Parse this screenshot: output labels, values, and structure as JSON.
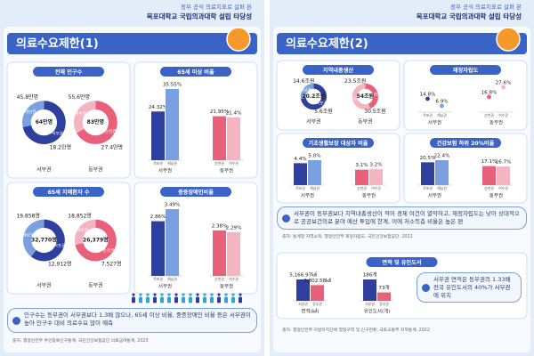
{
  "pages": [
    {
      "header": {
        "line1": "정부 공식 의료지표로 살펴 본",
        "line2": "목포대학교 국립의과대학 설립 타당성"
      },
      "title": "의료수요제한(1)",
      "charts": [
        {
          "type": "donut",
          "title": "전체 인구수",
          "groups": [
            {
              "name": "서부권",
              "total_label": "64만명",
              "segments": [
                {
                  "name": "목포권",
                  "value": 45.8,
                  "label": "45.8만명",
                  "color": "#2f3f9e"
                },
                {
                  "name": "해남권",
                  "value": 18.2,
                  "label": "18.2만명",
                  "color": "#7aa0e0"
                }
              ]
            },
            {
              "name": "동부권",
              "total_label": "83만명",
              "segments": [
                {
                  "name": "순천권",
                  "value": 55.6,
                  "label": "55.6만명",
                  "color": "#e8607a"
                },
                {
                  "name": "여수권",
                  "value": 27.4,
                  "label": "27.4만명",
                  "color": "#f4b4c2"
                }
              ]
            }
          ]
        },
        {
          "type": "bar",
          "title": "65세 이상 비율",
          "groups": [
            {
              "name": "서부권",
              "bars": [
                {
                  "name": "목포권",
                  "value": 24.32,
                  "value_label": "24.32%",
                  "color": "#2f3f9e"
                },
                {
                  "name": "해남권",
                  "value": 35.55,
                  "value_label": "35.55%",
                  "color": "#7aa0e0"
                }
              ]
            },
            {
              "name": "동부권",
              "bars": [
                {
                  "name": "순천권",
                  "value": 21.95,
                  "value_label": "21.95%",
                  "color": "#e8607a"
                },
                {
                  "name": "여수권",
                  "value": 21.4,
                  "value_label": "21.4%",
                  "color": "#f4b4c2"
                }
              ]
            }
          ]
        },
        {
          "type": "donut",
          "title": "65세 치매환자 수",
          "groups": [
            {
              "name": "서부권",
              "total_label": "32,770명",
              "segments": [
                {
                  "name": "목포권",
                  "value": 19858,
                  "label": "19,858명",
                  "color": "#2f3f9e"
                },
                {
                  "name": "해남권",
                  "value": 12912,
                  "label": "12,912명",
                  "color": "#7aa0e0"
                }
              ]
            },
            {
              "name": "동부권",
              "total_label": "26,379명",
              "segments": [
                {
                  "name": "순천권",
                  "value": 18852,
                  "label": "18,852명",
                  "color": "#e8607a"
                },
                {
                  "name": "여수권",
                  "value": 7527,
                  "label": "7,527명",
                  "color": "#f4b4c2"
                }
              ]
            }
          ]
        },
        {
          "type": "bar",
          "title": "중증장애인비율",
          "groups": [
            {
              "name": "서부권",
              "bars": [
                {
                  "name": "목포권",
                  "value": 2.86,
                  "value_label": "2.86%",
                  "color": "#2f3f9e"
                },
                {
                  "name": "해남권",
                  "value": 3.49,
                  "value_label": "3.49%",
                  "color": "#7aa0e0"
                }
              ]
            },
            {
              "name": "동부권",
              "bars": [
                {
                  "name": "순천권",
                  "value": 2.38,
                  "value_label": "2.38%",
                  "color": "#e8607a"
                },
                {
                  "name": "여수권",
                  "value": 2.29,
                  "value_label": "2.29%",
                  "color": "#f4b4c2"
                }
              ]
            }
          ]
        }
      ],
      "notes": [
        "인구수는 동부권이 서부권보다 1.3배 많으나, 65세 이상 비율, 중증장애인 비율 등은 서부권이 높아 인구수 대비 의료수요 많이 예측"
      ],
      "sources": [
        "출처: 행정안전부 주민등록인구통계, 국민건강보험공단 의료급여통계, 2023"
      ]
    },
    {
      "header": {
        "line1": "정부 공식 의료지표로 살펴 본",
        "line2": "목포대학교 국립의과대학 설립 타당성"
      },
      "title": "의료수요제한(2)",
      "charts": [
        {
          "type": "donut",
          "title": "지역내총생산",
          "groups": [
            {
              "name": "서부권",
              "total_label": "20.2조원",
              "segments": [
                {
                  "name": "목포권",
                  "value": 14.6,
                  "label": "14.6조원",
                  "color": "#2f3f9e"
                },
                {
                  "name": "해남권",
                  "value": 5.6,
                  "label": "5.6조원",
                  "color": "#7aa0e0"
                }
              ]
            },
            {
              "name": "동부권",
              "total_label": "54조원",
              "segments": [
                {
                  "name": "순천권",
                  "value": 23.5,
                  "label": "23.5조원",
                  "color": "#e8607a"
                },
                {
                  "name": "여수권",
                  "value": 30.5,
                  "label": "30.5조원",
                  "color": "#f4b4c2"
                }
              ]
            }
          ]
        },
        {
          "type": "dot",
          "title": "재정자립도",
          "groups": [
            {
              "name": "서부권",
              "bars": [
                {
                  "name": "목포권",
                  "value": 14.8,
                  "value_label": "14.8%",
                  "color": "#2f3f9e"
                },
                {
                  "name": "해남권",
                  "value": 6.9,
                  "value_label": "6.9%",
                  "color": "#7aa0e0"
                }
              ]
            },
            {
              "name": "동부권",
              "bars": [
                {
                  "name": "순천권",
                  "value": 16.8,
                  "value_label": "16.8%",
                  "color": "#e8607a"
                },
                {
                  "name": "여수권",
                  "value": 27.6,
                  "value_label": "27.6%",
                  "color": "#f4b4c2"
                }
              ]
            }
          ]
        },
        {
          "type": "bar",
          "title": "기초생활보장 대상자 비율",
          "groups": [
            {
              "name": "서부권",
              "bars": [
                {
                  "name": "목포권",
                  "value": 4.4,
                  "value_label": "4.4%",
                  "color": "#2f3f9e"
                },
                {
                  "name": "해남권",
                  "value": 5.0,
                  "value_label": "5.0%",
                  "color": "#7aa0e0"
                }
              ]
            },
            {
              "name": "동부권",
              "bars": [
                {
                  "name": "순천권",
                  "value": 3.1,
                  "value_label": "3.1%",
                  "color": "#e8607a"
                },
                {
                  "name": "여수권",
                  "value": 3.2,
                  "value_label": "3.2%",
                  "color": "#f4b4c2"
                }
              ]
            }
          ]
        },
        {
          "type": "bar",
          "title": "건강보험 하위 20%비율",
          "groups": [
            {
              "name": "서부권",
              "bars": [
                {
                  "name": "목포권",
                  "value": 20.5,
                  "value_label": "20.5%",
                  "color": "#2f3f9e"
                },
                {
                  "name": "해남권",
                  "value": 22.4,
                  "value_label": "22.4%",
                  "color": "#7aa0e0"
                }
              ]
            },
            {
              "name": "동부권",
              "bars": [
                {
                  "name": "순천권",
                  "value": 17.1,
                  "value_label": "17.1%",
                  "color": "#e8607a"
                },
                {
                  "name": "여수권",
                  "value": 16.7,
                  "value_label": "16.7%",
                  "color": "#f4b4c2"
                }
              ]
            }
          ]
        },
        {
          "type": "paired_bar",
          "title": "면적 및 유인도서",
          "groups": [
            {
              "name": "면적(㎢)",
              "bars": [
                {
                  "name": "서부권",
                  "value": 5166.97,
                  "value_label": "5,166.97㎢",
                  "color": "#2f3f9e"
                },
                {
                  "name": "동부권",
                  "value": 3802.58,
                  "value_label": "3,802.58㎢",
                  "color": "#e8607a"
                }
              ]
            },
            {
              "name": "유인도서(개)",
              "bars": [
                {
                  "name": "서부권",
                  "value": 186,
                  "value_label": "186개",
                  "color": "#2f3f9e"
                },
                {
                  "name": "동부권",
                  "value": 73,
                  "value_label": "73개",
                  "color": "#e8607a"
                }
              ]
            }
          ]
        }
      ],
      "notes": [
        "서부권이 동부권보다 지역내총생산이 적어 경제 여건이 열악하고, 재정자립도는 낮아 상대적으로 공공보건의료 분야 예산 투입에 한계, 이에 저소득층 비율은 높은 편",
        "서부권 면적은 동부권의 1.33배 전국 유인도서의 40%가 서부권에 위치"
      ],
      "sources": [
        "출처: 통계청 지역소득, 행정안전부 재정자립도, 국민건강보험공단, 2021",
        "출처: 행정안전부 지방자치단체 행정구역 및 인구현황, 국토교통부 지적통계, 2022"
      ]
    }
  ]
}
